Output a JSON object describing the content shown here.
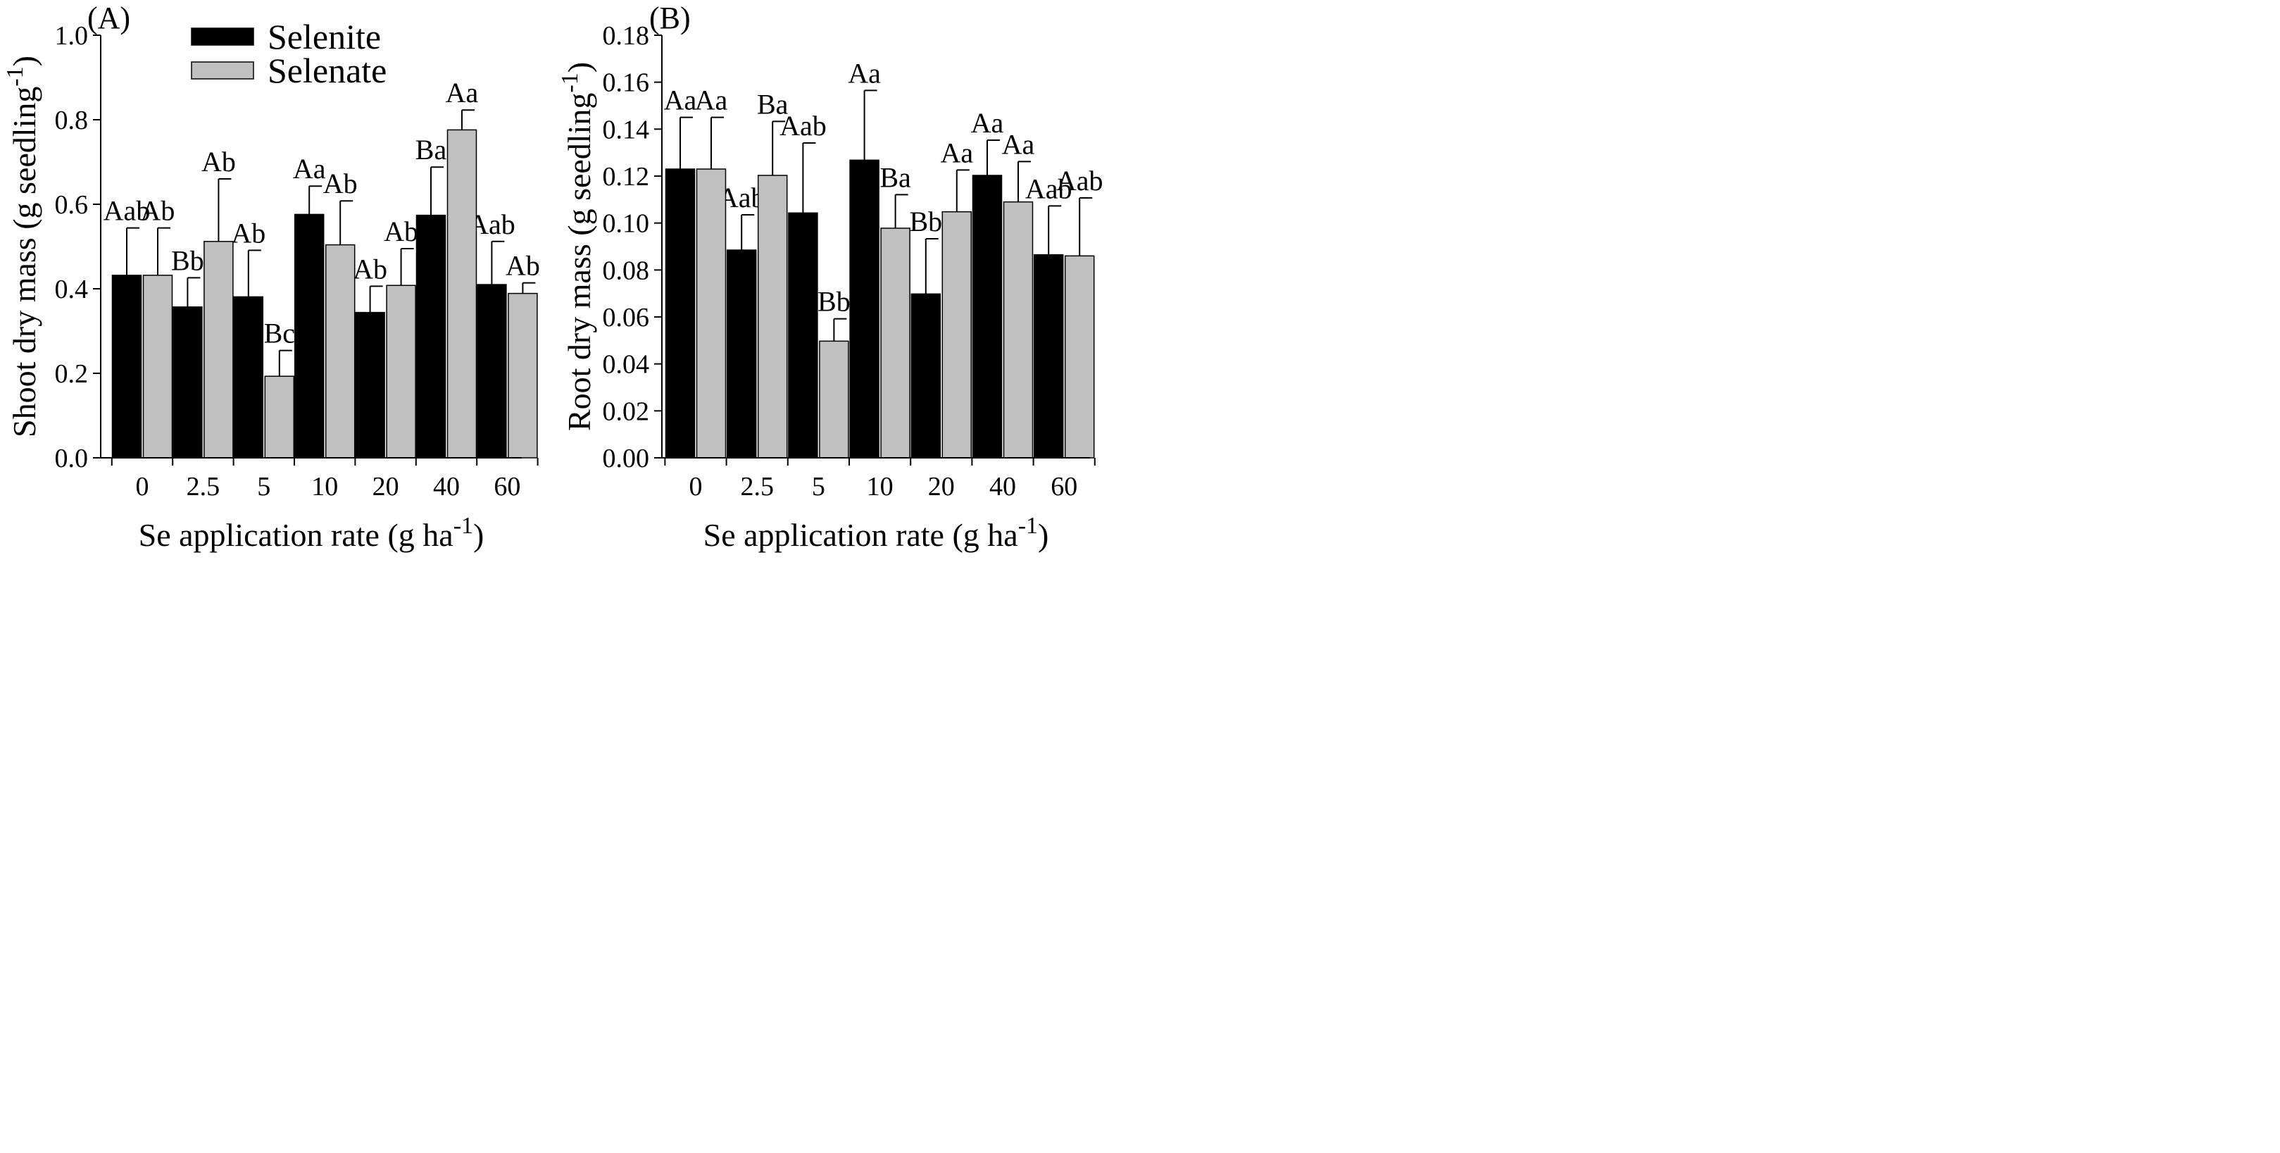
{
  "legend": {
    "position": "top-left of panel A",
    "entries": [
      {
        "label": "Selenite",
        "color": "#000000"
      },
      {
        "label": "Selenate",
        "color": "#c0c0c0"
      }
    ]
  },
  "chart_data": [
    {
      "type": "bar",
      "panel_label": "(A)",
      "categories": [
        "0",
        "2.5",
        "5",
        "10",
        "20",
        "40",
        "60"
      ],
      "xlabel": "Se application rate (g ha",
      "xlabel_sup": "-1",
      "xlabel_end": ")",
      "ylabel": "Shoot dry mass (g seedling",
      "ylabel_sup": "-1",
      "ylabel_end": ")",
      "ylim": [
        0,
        1.0
      ],
      "yticks": [
        "0.0",
        "0.2",
        "0.4",
        "0.6",
        "0.8",
        "1.0"
      ],
      "series": [
        {
          "name": "Selenite",
          "color": "#000000",
          "values": [
            0.432,
            0.357,
            0.381,
            0.576,
            0.344,
            0.574,
            0.41
          ],
          "errors": [
            0.112,
            0.069,
            0.11,
            0.067,
            0.062,
            0.114,
            0.102
          ],
          "labels": [
            "Aab",
            "Bb",
            "Ab",
            "Aa",
            "Ab",
            "Ba",
            "Aab"
          ]
        },
        {
          "name": "Selenate",
          "color": "#c0c0c0",
          "values": [
            0.432,
            0.512,
            0.193,
            0.504,
            0.408,
            0.776,
            0.389
          ],
          "errors": [
            0.112,
            0.148,
            0.061,
            0.104,
            0.087,
            0.047,
            0.025
          ],
          "labels": [
            "Ab",
            "Ab",
            "Bc",
            "Ab",
            "Ab",
            "Aa",
            "Ab"
          ]
        }
      ]
    },
    {
      "type": "bar",
      "panel_label": "(B)",
      "categories": [
        "0",
        "2.5",
        "5",
        "10",
        "20",
        "40",
        "60"
      ],
      "xlabel": "Se application rate (g ha",
      "xlabel_sup": "-1",
      "xlabel_end": ")",
      "ylabel": "Root dry mass (g seedling",
      "ylabel_sup": "-1",
      "ylabel_end": ")",
      "ylim": [
        0,
        0.18
      ],
      "yticks": [
        "0.00",
        "0.02",
        "0.04",
        "0.06",
        "0.08",
        "0.10",
        "0.12",
        "0.14",
        "0.16",
        "0.18"
      ],
      "series": [
        {
          "name": "Selenite",
          "color": "#000000",
          "values": [
            0.123,
            0.0885,
            0.1043,
            0.1268,
            0.0698,
            0.1203,
            0.0865
          ],
          "errors": [
            0.022,
            0.015,
            0.0298,
            0.0297,
            0.0235,
            0.015,
            0.0208
          ],
          "labels": [
            "Aa",
            "Aab",
            "Aab",
            "Aa",
            "Bb",
            "Aa",
            "Aab"
          ]
        },
        {
          "name": "Selenate",
          "color": "#c0c0c0",
          "values": [
            0.123,
            0.1203,
            0.0497,
            0.0978,
            0.1048,
            0.109,
            0.086
          ],
          "errors": [
            0.022,
            0.023,
            0.0095,
            0.0143,
            0.0178,
            0.0172,
            0.0247
          ],
          "labels": [
            "Aa",
            "Ba",
            "Bb",
            "Ba",
            "Aa",
            "Aa",
            "Aab"
          ]
        }
      ]
    }
  ]
}
